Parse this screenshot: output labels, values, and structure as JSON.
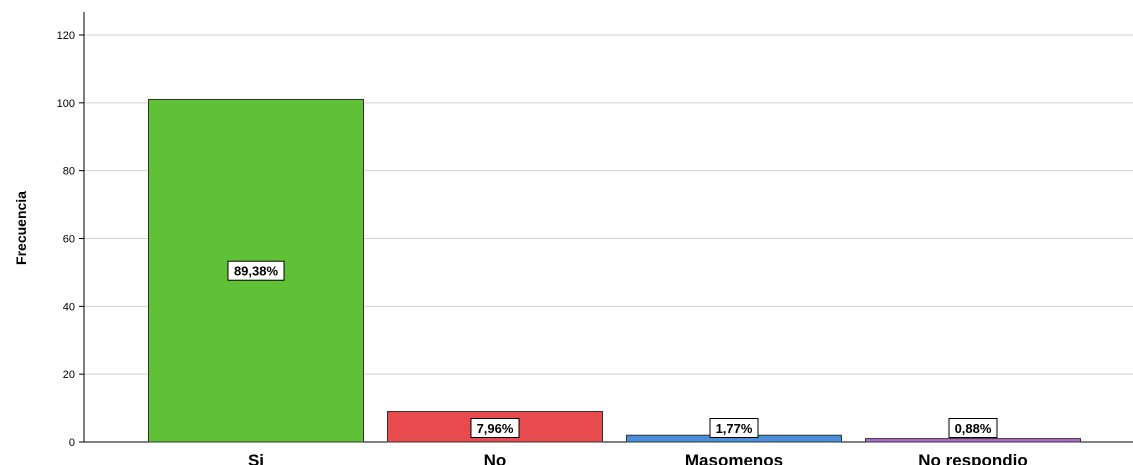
{
  "chart_data": {
    "type": "bar",
    "title": "",
    "xlabel": "",
    "ylabel": "Frecuencia",
    "ylim": [
      0,
      120
    ],
    "yticks": [
      0,
      20,
      40,
      60,
      80,
      100,
      120
    ],
    "grid": true,
    "categories": [
      "Si",
      "No",
      "Masomenos",
      "No respondio"
    ],
    "values": [
      101,
      9,
      2,
      1
    ],
    "data_labels": [
      "89,38%",
      "7,96%",
      "1,77%",
      "0,88%"
    ],
    "colors": [
      "#5fc136",
      "#e84b4e",
      "#4a8fdc",
      "#b469d6"
    ]
  }
}
